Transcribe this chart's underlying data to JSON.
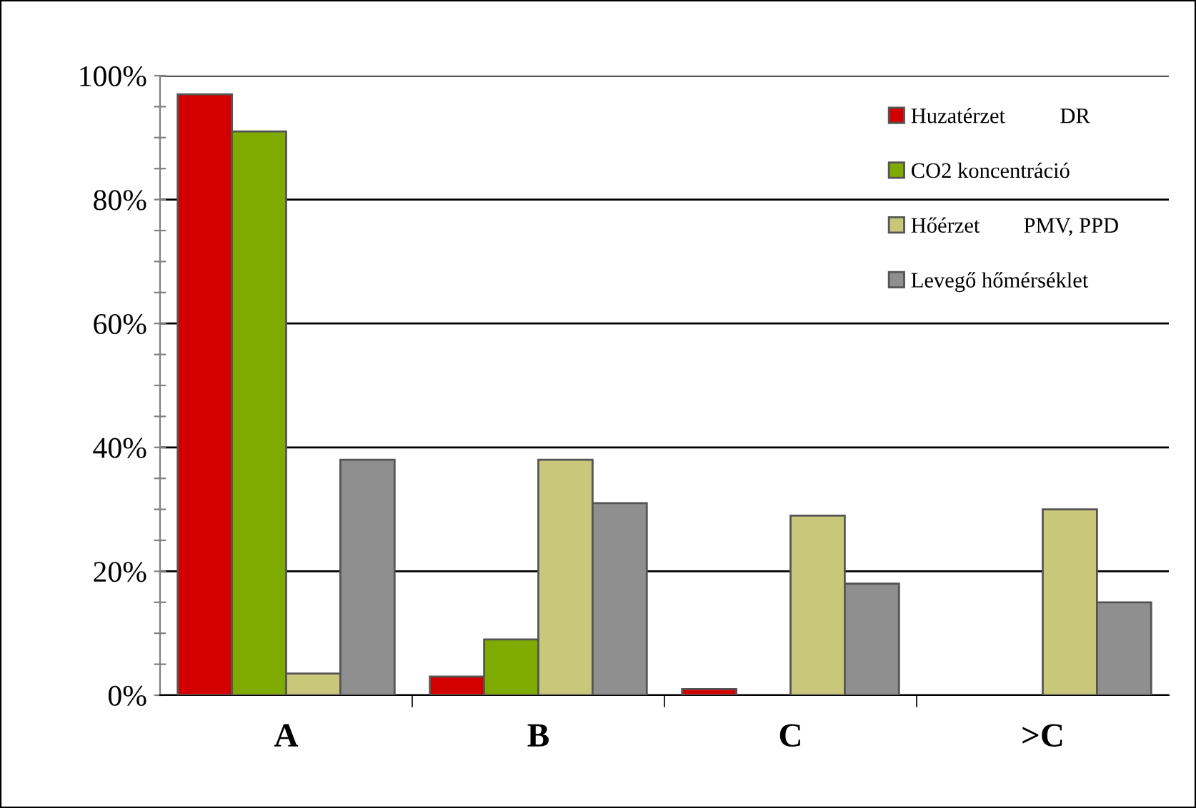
{
  "chart_data": {
    "type": "bar",
    "categories": [
      "A",
      "B",
      "C",
      ">C"
    ],
    "series": [
      {
        "name": "Huzatérzet          DR",
        "color": "#d40000",
        "values": [
          97,
          3,
          1,
          null
        ]
      },
      {
        "name": "CO2 koncentráció",
        "color": "#7fab00",
        "values": [
          91,
          9,
          null,
          null
        ]
      },
      {
        "name": "Hőérzet        PMV, PPD",
        "color": "#c9c77a",
        "values": [
          3.5,
          38,
          29,
          30
        ]
      },
      {
        "name": "Levegő hőmérséklet",
        "color": "#8f8f8f",
        "values": [
          38,
          31,
          18,
          15
        ]
      }
    ],
    "ylim": [
      0,
      100
    ],
    "yticks": [
      {
        "value": 0,
        "label": "0%"
      },
      {
        "value": 5,
        "label": null
      },
      {
        "value": 10,
        "label": null
      },
      {
        "value": 15,
        "label": null
      },
      {
        "value": 20,
        "label": "20%"
      },
      {
        "value": 25,
        "label": null
      },
      {
        "value": 30,
        "label": null
      },
      {
        "value": 35,
        "label": null
      },
      {
        "value": 40,
        "label": "40%"
      },
      {
        "value": 45,
        "label": null
      },
      {
        "value": 50,
        "label": null
      },
      {
        "value": 55,
        "label": null
      },
      {
        "value": 60,
        "label": "60%"
      },
      {
        "value": 65,
        "label": null
      },
      {
        "value": 70,
        "label": null
      },
      {
        "value": 75,
        "label": null
      },
      {
        "value": 80,
        "label": "80%"
      },
      {
        "value": 85,
        "label": null
      },
      {
        "value": 90,
        "label": null
      },
      {
        "value": 95,
        "label": null
      },
      {
        "value": 100,
        "label": "100%"
      }
    ],
    "grid": "y",
    "legend": "top right"
  }
}
